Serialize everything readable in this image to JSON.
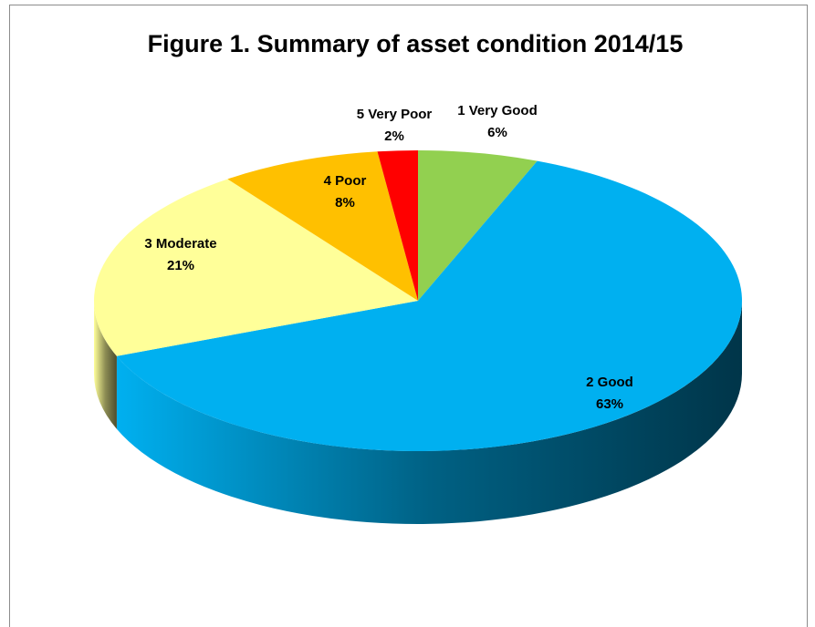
{
  "chart_data": {
    "type": "pie",
    "title": "Figure 1. Summary of asset condition 2014/15",
    "categories": [
      "1 Very Good",
      "2 Good",
      "3 Moderate",
      "4 Poor",
      "5 Very Poor"
    ],
    "values": [
      6,
      63,
      21,
      8,
      2
    ],
    "value_labels": [
      "6%",
      "63%",
      "21%",
      "8%",
      "2%"
    ],
    "colors": [
      "#92d050",
      "#00b0f0",
      "#ffff99",
      "#ffc000",
      "#ff0000"
    ]
  }
}
